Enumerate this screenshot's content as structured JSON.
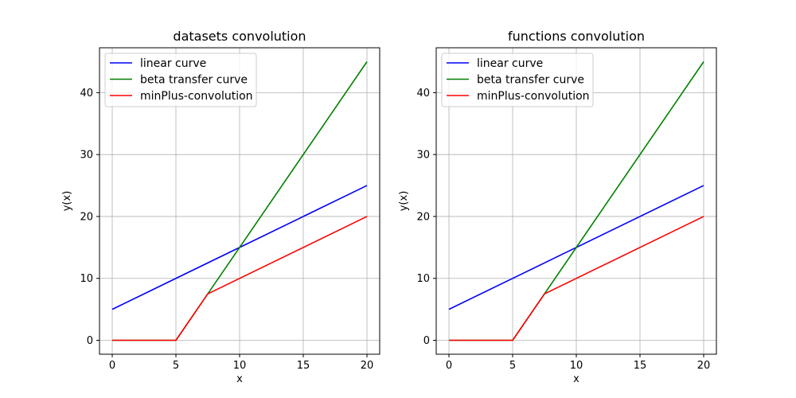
{
  "chart_data": [
    {
      "type": "line",
      "title": "datasets convolution",
      "xlabel": "x",
      "ylabel": "y(x)",
      "xlim": [
        -1,
        21
      ],
      "ylim": [
        -2.25,
        47.25
      ],
      "xticks": [
        0,
        5,
        10,
        15,
        20
      ],
      "yticks": [
        0,
        10,
        20,
        30,
        40
      ],
      "grid": true,
      "legend_position": "top-left",
      "series": [
        {
          "name": "linear curve",
          "color": "#0000ff",
          "x": [
            0,
            20
          ],
          "y": [
            5,
            25
          ]
        },
        {
          "name": "beta transfer curve",
          "color": "#008000",
          "x": [
            0,
            5,
            20
          ],
          "y": [
            0,
            0,
            45
          ]
        },
        {
          "name": "minPlus-convolution",
          "color": "#ff0000",
          "x": [
            0,
            5,
            7.5,
            20
          ],
          "y": [
            0,
            0,
            7.5,
            20
          ]
        }
      ]
    },
    {
      "type": "line",
      "title": "functions convolution",
      "xlabel": "x",
      "ylabel": "y(x)",
      "xlim": [
        -1,
        21
      ],
      "ylim": [
        -2.25,
        47.25
      ],
      "xticks": [
        0,
        5,
        10,
        15,
        20
      ],
      "yticks": [
        0,
        10,
        20,
        30,
        40
      ],
      "grid": true,
      "legend_position": "top-left",
      "series": [
        {
          "name": "linear curve",
          "color": "#0000ff",
          "x": [
            0,
            20
          ],
          "y": [
            5,
            25
          ]
        },
        {
          "name": "beta transfer curve",
          "color": "#008000",
          "x": [
            0,
            5,
            20
          ],
          "y": [
            0,
            0,
            45
          ]
        },
        {
          "name": "minPlus-convolution",
          "color": "#ff0000",
          "x": [
            0,
            5,
            7.5,
            20
          ],
          "y": [
            0,
            0,
            7.5,
            20
          ]
        }
      ]
    }
  ]
}
